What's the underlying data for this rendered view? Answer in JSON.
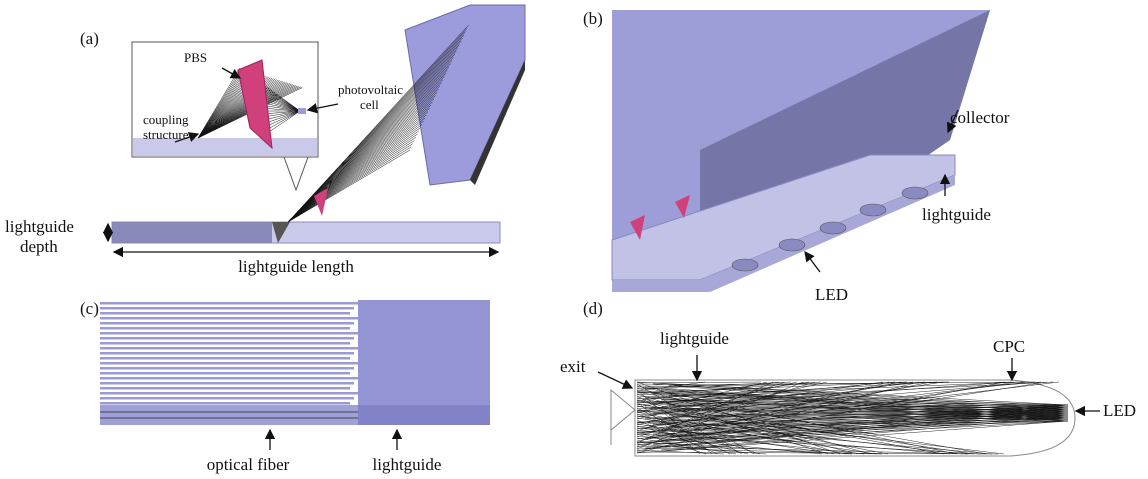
{
  "panels": [
    {
      "label": "(a)",
      "annotations": {
        "pbs": "PBS",
        "photovoltaic_cell": [
          "photovoltaic",
          "cell"
        ],
        "coupling_structure": [
          "coupling",
          "structure"
        ],
        "lightguide_depth": [
          "lightguide",
          "depth"
        ],
        "lightguide_length": "lightguide length"
      }
    },
    {
      "label": "(b)",
      "annotations": {
        "collector": "collector",
        "lightguide": "lightguide",
        "led": "LED"
      }
    },
    {
      "label": "(c)",
      "annotations": {
        "optical_fiber": "optical fiber",
        "lightguide": "lightguide"
      }
    },
    {
      "label": "(d)",
      "annotations": {
        "exit": "exit",
        "lightguide": "lightguide",
        "cpc": "CPC",
        "led": "LED"
      }
    }
  ]
}
